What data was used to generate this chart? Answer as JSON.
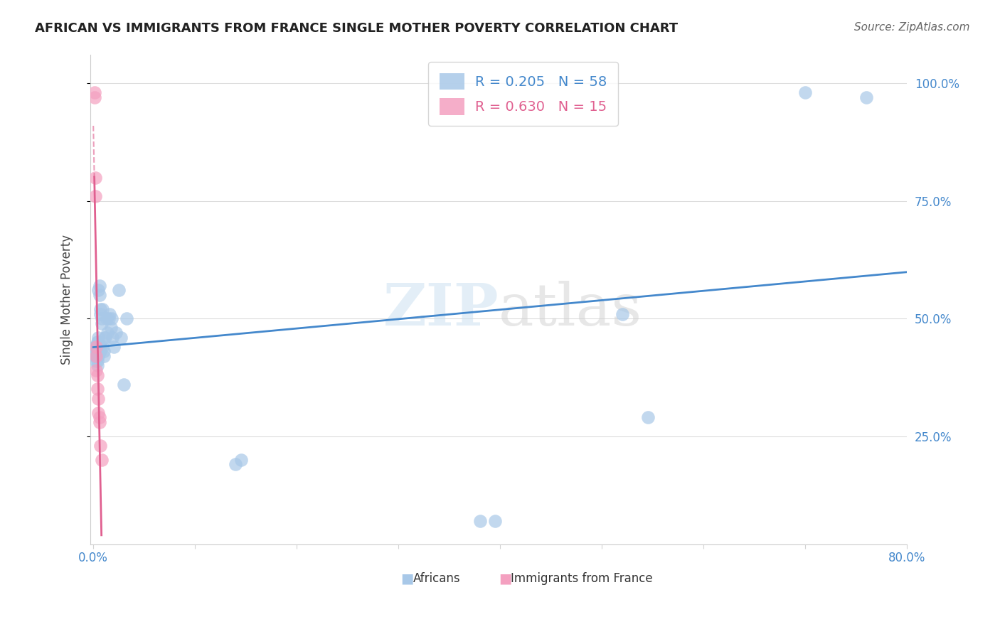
{
  "title": "AFRICAN VS IMMIGRANTS FROM FRANCE SINGLE MOTHER POVERTY CORRELATION CHART",
  "source": "Source: ZipAtlas.com",
  "ylabel": "Single Mother Poverty",
  "yticks": [
    0.25,
    0.5,
    0.75,
    1.0
  ],
  "ytick_labels": [
    "25.0%",
    "50.0%",
    "75.0%",
    "100.0%"
  ],
  "legend_label1": "Africans",
  "legend_label2": "Immigrants from France",
  "watermark": "ZIPatlas",
  "blue_color": "#a8c8e8",
  "pink_color": "#f4a0c0",
  "blue_line_color": "#4488cc",
  "pink_line_color": "#e06090",
  "background_color": "#ffffff",
  "africans_x": [
    0.001,
    0.001,
    0.002,
    0.002,
    0.002,
    0.003,
    0.003,
    0.003,
    0.003,
    0.004,
    0.004,
    0.004,
    0.004,
    0.004,
    0.004,
    0.005,
    0.005,
    0.005,
    0.005,
    0.005,
    0.005,
    0.006,
    0.006,
    0.006,
    0.006,
    0.007,
    0.007,
    0.007,
    0.007,
    0.008,
    0.008,
    0.009,
    0.009,
    0.01,
    0.01,
    0.011,
    0.012,
    0.013,
    0.014,
    0.015,
    0.016,
    0.017,
    0.018,
    0.019,
    0.02,
    0.022,
    0.025,
    0.027,
    0.03,
    0.033,
    0.14,
    0.145,
    0.38,
    0.395,
    0.52,
    0.545,
    0.7,
    0.76
  ],
  "africans_y": [
    0.44,
    0.43,
    0.44,
    0.43,
    0.42,
    0.44,
    0.43,
    0.42,
    0.41,
    0.45,
    0.44,
    0.43,
    0.42,
    0.41,
    0.4,
    0.46,
    0.45,
    0.44,
    0.43,
    0.42,
    0.56,
    0.57,
    0.55,
    0.44,
    0.43,
    0.52,
    0.51,
    0.44,
    0.43,
    0.5,
    0.49,
    0.52,
    0.44,
    0.43,
    0.42,
    0.46,
    0.46,
    0.5,
    0.47,
    0.5,
    0.51,
    0.48,
    0.5,
    0.46,
    0.44,
    0.47,
    0.56,
    0.46,
    0.36,
    0.5,
    0.19,
    0.2,
    0.07,
    0.07,
    0.51,
    0.29,
    0.98,
    0.97
  ],
  "france_x": [
    0.001,
    0.001,
    0.002,
    0.002,
    0.003,
    0.003,
    0.003,
    0.004,
    0.004,
    0.005,
    0.005,
    0.006,
    0.006,
    0.007,
    0.008
  ],
  "france_y": [
    0.98,
    0.97,
    0.8,
    0.76,
    0.44,
    0.42,
    0.39,
    0.38,
    0.35,
    0.33,
    0.3,
    0.28,
    0.29,
    0.23,
    0.2
  ],
  "xlim_min": -0.003,
  "xlim_max": 0.8,
  "ylim_min": 0.02,
  "ylim_max": 1.06
}
